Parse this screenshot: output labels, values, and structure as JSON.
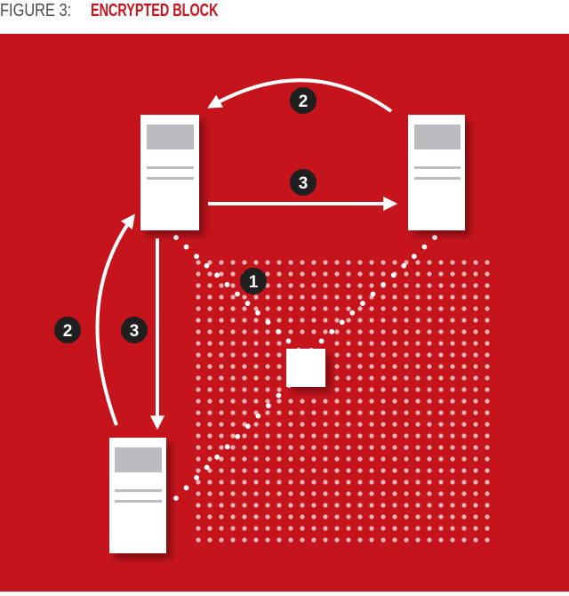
{
  "caption": {
    "prefix": "FIGURE 3:",
    "title": "ENCRYPTED BLOCK"
  },
  "colors": {
    "background": "#c6141c",
    "server": "#ffffff",
    "screen": "#bcbcc0",
    "dot_grid": "#e8b4b4",
    "highlight_dot": "#ffffff",
    "arrow": "#ffffff",
    "badge": "#1f1f1f",
    "caption_prefix": "#4a4a4a",
    "caption_title": "#c6141c"
  },
  "servers": [
    {
      "id": "server-top-left"
    },
    {
      "id": "server-top-right"
    },
    {
      "id": "server-bottom-left"
    }
  ],
  "encrypted_block": {
    "icon": "square-block-icon"
  },
  "badges": [
    {
      "id": "badge-1",
      "label": "1"
    },
    {
      "id": "badge-2-top",
      "label": "2"
    },
    {
      "id": "badge-3-middle",
      "label": "3"
    },
    {
      "id": "badge-2-left",
      "label": "2"
    },
    {
      "id": "badge-3-left",
      "label": "3"
    }
  ]
}
